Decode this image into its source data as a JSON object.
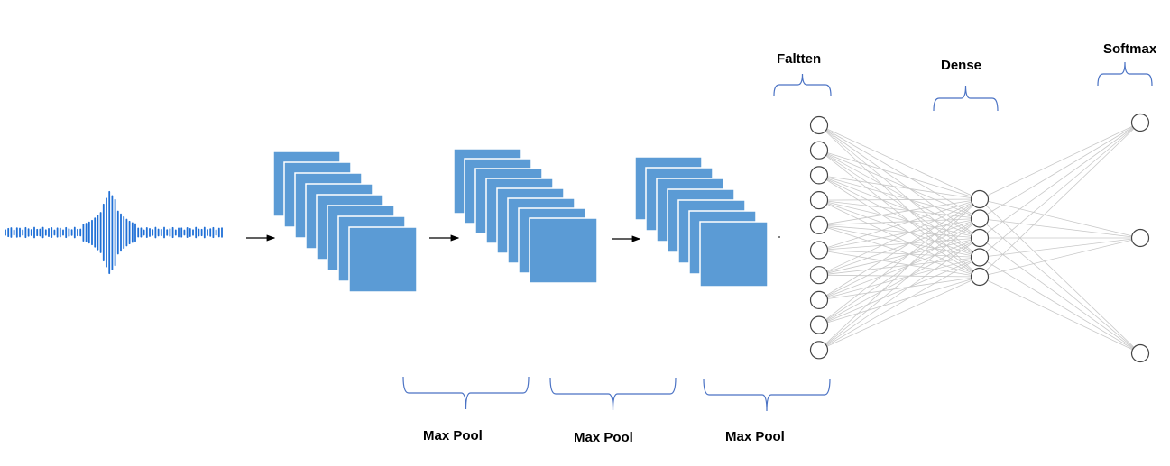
{
  "labels": {
    "flatten": "Faltten",
    "dense": "Dense",
    "softmax": "Softmax",
    "pool1": "Max Pool",
    "pool2": "Max Pool",
    "pool3": "Max Pool"
  },
  "network": {
    "flatten_nodes": 10,
    "dense_nodes": 5,
    "softmax_nodes": 3
  },
  "colors": {
    "waveform": "#1f6fd6",
    "feature_map": "#5b9bd5",
    "brace": "#4a72c4",
    "connection": "#c8c8c8",
    "node_stroke": "#444444"
  }
}
